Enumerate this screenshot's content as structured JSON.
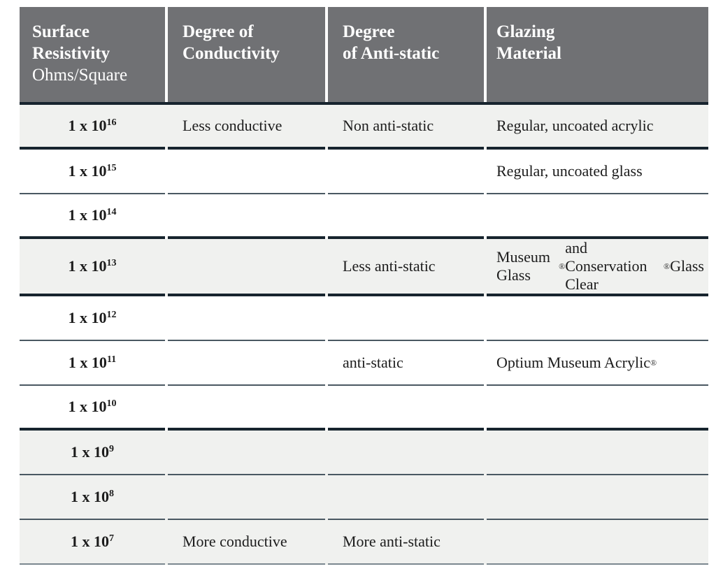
{
  "table": {
    "header": {
      "col1_title_line1": "Surface",
      "col1_title_line2": "Resistivity",
      "col1_subtitle": "Ohms/Square",
      "col2_line1": "Degree of",
      "col2_line2": "Conductivity",
      "col3_line1": "Degree",
      "col3_line2": "of Anti-static",
      "col4_line1": "Glazing",
      "col4_line2": "Material"
    },
    "rows": [
      {
        "resistivity_base": "1 x 10",
        "resistivity_exp": "16",
        "conductivity": "Less conductive",
        "antistatic": "Non anti-static",
        "glazing": "Regular, uncoated acrylic"
      },
      {
        "resistivity_base": "1 x 10",
        "resistivity_exp": "15",
        "conductivity": "",
        "antistatic": "",
        "glazing": "Regular, uncoated glass"
      },
      {
        "resistivity_base": "1 x 10",
        "resistivity_exp": "14",
        "conductivity": "",
        "antistatic": "",
        "glazing": ""
      },
      {
        "resistivity_base": "1 x 10",
        "resistivity_exp": "13",
        "conductivity": "",
        "antistatic": "Less anti-static",
        "glazing": "Museum Glass® and Conservation Clear® Glass"
      },
      {
        "resistivity_base": "1 x 10",
        "resistivity_exp": "12",
        "conductivity": "",
        "antistatic": "",
        "glazing": ""
      },
      {
        "resistivity_base": "1 x 10",
        "resistivity_exp": "11",
        "conductivity": "",
        "antistatic": "anti-static",
        "glazing": "Optium Museum Acrylic®"
      },
      {
        "resistivity_base": "1 x 10",
        "resistivity_exp": "10",
        "conductivity": "",
        "antistatic": "",
        "glazing": ""
      },
      {
        "resistivity_base": "1 x 10",
        "resistivity_exp": "9",
        "conductivity": "",
        "antistatic": "",
        "glazing": ""
      },
      {
        "resistivity_base": "1 x 10",
        "resistivity_exp": "8",
        "conductivity": "",
        "antistatic": "",
        "glazing": ""
      },
      {
        "resistivity_base": "1 x 10",
        "resistivity_exp": "7",
        "conductivity": "More conductive",
        "antistatic": "More anti-static",
        "glazing": ""
      }
    ],
    "colors": {
      "header_bg": "#707174",
      "header_text": "#ffffff",
      "row_shaded_bg": "#f0f1ef",
      "row_plain_bg": "#ffffff",
      "body_text": "#1c1c1c",
      "border_thick": "#17242e",
      "border_thin": "#4a5862",
      "border_final": "#7b8890"
    }
  },
  "chart_data": {
    "type": "table",
    "title": "",
    "columns": [
      "Surface Resistivity Ohms/Square",
      "Degree of Conductivity",
      "Degree of Anti-static",
      "Glazing Material"
    ],
    "rows": [
      [
        "1 x 10^16",
        "Less conductive",
        "Non anti-static",
        "Regular, uncoated acrylic"
      ],
      [
        "1 x 10^15",
        "",
        "",
        "Regular, uncoated glass"
      ],
      [
        "1 x 10^14",
        "",
        "",
        ""
      ],
      [
        "1 x 10^13",
        "",
        "Less anti-static",
        "Museum Glass® and Conservation Clear® Glass"
      ],
      [
        "1 x 10^12",
        "",
        "",
        ""
      ],
      [
        "1 x 10^11",
        "",
        "anti-static",
        "Optium Museum Acrylic®"
      ],
      [
        "1 x 10^10",
        "",
        "",
        ""
      ],
      [
        "1 x 10^9",
        "",
        "",
        ""
      ],
      [
        "1 x 10^8",
        "",
        "",
        ""
      ],
      [
        "1 x 10^7",
        "More conductive",
        "More anti-static",
        ""
      ]
    ]
  }
}
